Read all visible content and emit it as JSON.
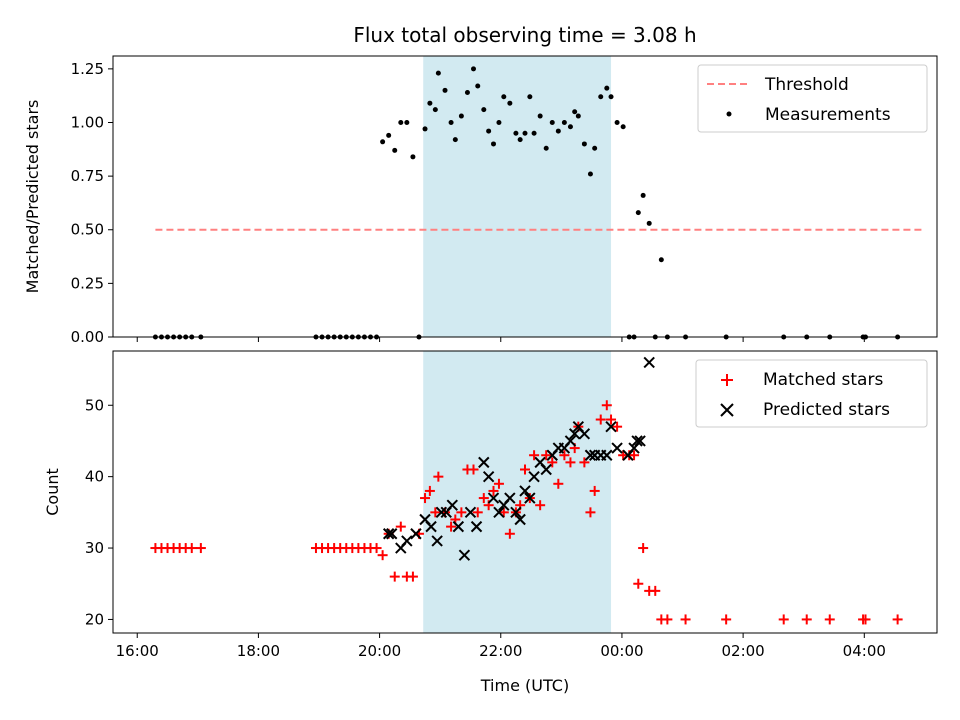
{
  "chart_data": {
    "title": "Flux total observing time = 3.08 h",
    "xlabel": "Time (UTC)",
    "x_unit": "hours UTC (values past 24 are after midnight)",
    "xlim": [
      15.6,
      29.2
    ],
    "x_ticks": [
      16,
      18,
      20,
      22,
      24,
      26,
      28
    ],
    "x_tick_labels": [
      "16:00",
      "18:00",
      "20:00",
      "22:00",
      "00:00",
      "02:00",
      "04:00"
    ],
    "highlight": {
      "x0": 20.72,
      "x1": 23.82,
      "color": "#add8e6"
    },
    "panels": [
      {
        "type": "scatter",
        "ylabel": "Matched/Predicted stars",
        "ylim": [
          0,
          1.31
        ],
        "y_ticks": [
          0.0,
          0.25,
          0.5,
          0.75,
          1.0,
          1.25
        ],
        "y_tick_labels": [
          "0.00",
          "0.25",
          "0.50",
          "0.75",
          "1.00",
          "1.25"
        ],
        "legend": {
          "position": "upper right",
          "entries": [
            "Threshold",
            "Measurements"
          ]
        },
        "threshold": {
          "name": "Threshold",
          "y": 0.5,
          "x": [
            16.3,
            29.0
          ],
          "color": "#ff8080",
          "style": "dashed"
        },
        "measurements": {
          "name": "Measurements",
          "color": "#000000",
          "x": [
            16.3,
            16.4,
            16.5,
            16.6,
            16.7,
            16.8,
            16.9,
            17.05,
            18.95,
            19.05,
            19.15,
            19.25,
            19.35,
            19.45,
            19.55,
            19.65,
            19.75,
            19.85,
            19.95,
            20.05,
            20.15,
            20.25,
            20.35,
            20.45,
            20.55,
            20.65,
            20.75,
            20.83,
            20.92,
            20.97,
            21.08,
            21.18,
            21.25,
            21.35,
            21.45,
            21.55,
            21.62,
            21.72,
            21.8,
            21.88,
            21.97,
            22.05,
            22.15,
            22.25,
            22.32,
            22.4,
            22.48,
            22.55,
            22.65,
            22.75,
            22.85,
            22.95,
            23.05,
            23.15,
            23.22,
            23.28,
            23.38,
            23.48,
            23.55,
            23.65,
            23.75,
            23.82,
            23.92,
            24.02,
            24.12,
            24.2,
            24.27,
            24.35,
            24.45,
            24.55,
            24.65,
            24.75,
            25.05,
            25.72,
            26.67,
            27.05,
            27.43,
            27.98,
            28.02,
            28.55
          ],
          "y": [
            0,
            0,
            0,
            0,
            0,
            0,
            0,
            0,
            0,
            0,
            0,
            0,
            0,
            0,
            0,
            0,
            0,
            0,
            0,
            0.91,
            0.94,
            0.87,
            1.0,
            1.0,
            0.84,
            0,
            0.97,
            1.09,
            1.06,
            1.23,
            1.15,
            1.0,
            0.92,
            1.03,
            1.14,
            1.25,
            1.17,
            1.06,
            0.96,
            0.9,
            1.0,
            1.12,
            1.09,
            0.95,
            0.92,
            0.95,
            1.12,
            0.95,
            1.03,
            0.88,
            1.0,
            0.96,
            1.0,
            0.98,
            1.05,
            1.03,
            0.9,
            0.76,
            0.88,
            1.12,
            1.16,
            1.12,
            1.0,
            0.98,
            0,
            0,
            0.58,
            0.66,
            0.53,
            0,
            0.36,
            0,
            0,
            0,
            0,
            0,
            0,
            0,
            0,
            0
          ]
        }
      },
      {
        "type": "scatter",
        "ylabel": "Count",
        "ylim": [
          18.1,
          57.6
        ],
        "y_ticks": [
          20,
          30,
          40,
          50
        ],
        "y_tick_labels": [
          "20",
          "30",
          "40",
          "50"
        ],
        "legend": {
          "position": "upper right",
          "entries": [
            "Matched stars",
            "Predicted stars"
          ]
        },
        "series": [
          {
            "name": "Matched stars",
            "marker": "+",
            "color": "#ff0000",
            "x": [
              16.3,
              16.4,
              16.5,
              16.6,
              16.7,
              16.8,
              16.9,
              17.05,
              18.95,
              19.05,
              19.15,
              19.25,
              19.35,
              19.45,
              19.55,
              19.65,
              19.75,
              19.85,
              19.95,
              20.05,
              20.15,
              20.25,
              20.35,
              20.45,
              20.55,
              20.65,
              20.75,
              20.83,
              20.92,
              20.97,
              21.08,
              21.18,
              21.25,
              21.35,
              21.45,
              21.55,
              21.62,
              21.72,
              21.8,
              21.88,
              21.97,
              22.05,
              22.15,
              22.25,
              22.32,
              22.4,
              22.48,
              22.55,
              22.65,
              22.75,
              22.85,
              22.95,
              23.05,
              23.15,
              23.22,
              23.28,
              23.38,
              23.48,
              23.55,
              23.65,
              23.75,
              23.82,
              23.92,
              24.02,
              24.12,
              24.2,
              24.27,
              24.35,
              24.45,
              24.55,
              24.65,
              24.75,
              25.05,
              25.72,
              26.67,
              27.05,
              27.43,
              27.98,
              28.02,
              28.55
            ],
            "y": [
              30,
              30,
              30,
              30,
              30,
              30,
              30,
              30,
              30,
              30,
              30,
              30,
              30,
              30,
              30,
              30,
              30,
              30,
              30,
              29,
              32,
              26,
              33,
              26,
              26,
              32,
              37,
              38,
              35,
              40,
              35,
              33,
              34,
              35,
              41,
              41,
              35,
              37,
              36,
              38,
              39,
              35,
              32,
              35,
              36,
              41,
              37,
              43,
              36,
              43,
              42,
              39,
              43,
              42,
              44,
              47,
              42,
              35,
              38,
              48,
              50,
              48,
              47,
              43,
              43,
              43,
              25,
              30,
              24,
              24,
              20,
              20,
              20,
              20,
              20,
              20,
              20,
              20,
              20,
              20
            ]
          },
          {
            "name": "Predicted stars",
            "marker": "x",
            "color": "#000000",
            "x": [
              20.15,
              20.2,
              20.35,
              20.45,
              20.6,
              20.75,
              20.85,
              20.95,
              21.02,
              21.1,
              21.2,
              21.3,
              21.4,
              21.5,
              21.6,
              21.72,
              21.8,
              21.88,
              21.97,
              22.05,
              22.15,
              22.25,
              22.32,
              22.4,
              22.48,
              22.55,
              22.65,
              22.75,
              22.85,
              22.95,
              23.05,
              23.15,
              23.22,
              23.28,
              23.38,
              23.48,
              23.55,
              23.65,
              23.75,
              23.82,
              23.92,
              24.1,
              24.2,
              24.25,
              24.3,
              24.45
            ],
            "y": [
              32,
              32,
              30,
              31,
              32,
              34,
              33,
              31,
              35,
              35,
              36,
              33,
              29,
              35,
              33,
              42,
              40,
              37,
              35,
              36,
              37,
              35,
              34,
              38,
              37,
              40,
              42,
              41,
              43,
              44,
              44,
              45,
              46,
              47,
              46,
              43,
              43,
              43,
              43,
              47,
              44,
              43,
              44,
              45,
              45,
              56
            ]
          }
        ]
      }
    ]
  }
}
